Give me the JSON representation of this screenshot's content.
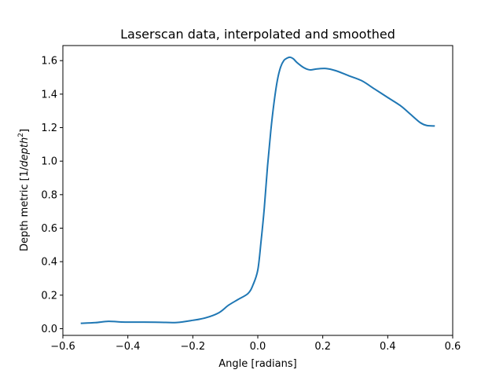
{
  "chart_data": {
    "type": "line",
    "title": "Laserscan data, interpolated and smoothed",
    "xlabel": "Angle [radians]",
    "ylabel_prefix": "Depth metric [1/",
    "ylabel_italic": "depth",
    "ylabel_exponent": "2",
    "ylabel_suffix": "]",
    "xlim": [
      -0.6,
      0.6
    ],
    "ylim": [
      -0.04,
      1.69
    ],
    "xticks": [
      -0.6,
      -0.4,
      -0.2,
      0.0,
      0.2,
      0.4,
      0.6
    ],
    "xtick_labels": [
      "−0.6",
      "−0.4",
      "−0.2",
      "0.0",
      "0.2",
      "0.4",
      "0.6"
    ],
    "yticks": [
      0.0,
      0.2,
      0.4,
      0.6,
      0.8,
      1.0,
      1.2,
      1.4,
      1.6
    ],
    "ytick_labels": [
      "0.0",
      "0.2",
      "0.4",
      "0.6",
      "0.8",
      "1.0",
      "1.2",
      "1.4",
      "1.6"
    ],
    "grid": false,
    "series": [
      {
        "color": "#1f77b4",
        "x": [
          -0.545,
          -0.5,
          -0.46,
          -0.42,
          -0.35,
          -0.3,
          -0.25,
          -0.2,
          -0.16,
          -0.12,
          -0.09,
          -0.06,
          -0.03,
          -0.015,
          0.0,
          0.01,
          0.02,
          0.03,
          0.04,
          0.05,
          0.06,
          0.07,
          0.08,
          0.09,
          0.1,
          0.11,
          0.12,
          0.14,
          0.16,
          0.18,
          0.21,
          0.24,
          0.28,
          0.32,
          0.36,
          0.4,
          0.44,
          0.47,
          0.5,
          0.52,
          0.545
        ],
        "y": [
          0.032,
          0.036,
          0.044,
          0.04,
          0.039,
          0.038,
          0.037,
          0.05,
          0.065,
          0.095,
          0.14,
          0.175,
          0.21,
          0.26,
          0.35,
          0.52,
          0.72,
          0.97,
          1.18,
          1.35,
          1.48,
          1.56,
          1.6,
          1.615,
          1.62,
          1.61,
          1.59,
          1.56,
          1.545,
          1.55,
          1.553,
          1.54,
          1.51,
          1.48,
          1.43,
          1.38,
          1.33,
          1.28,
          1.23,
          1.213,
          1.21
        ]
      }
    ]
  }
}
